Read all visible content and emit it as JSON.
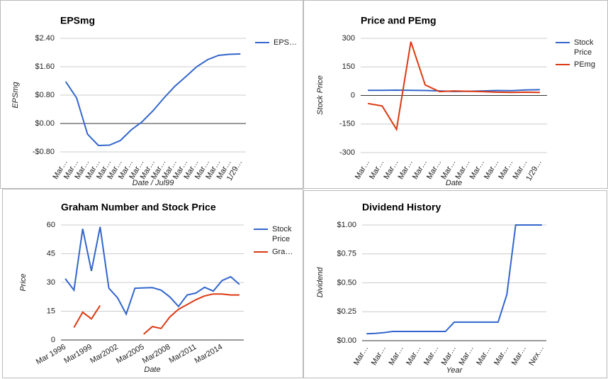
{
  "chart_data": [
    {
      "type": "line",
      "title": "EPSmg",
      "ylabel": "EPSmg",
      "xlabel": "Date / Jul99",
      "categories": [
        "Mar…",
        "Mar…",
        "Mar…",
        "Mar…",
        "Mar…",
        "Mar…",
        "Mar…",
        "Mar…",
        "Mar…",
        "Mar…",
        "Mar…",
        "Mar…",
        "Mar…",
        "Mar…",
        "Mar…",
        "Mar…",
        "1/29…"
      ],
      "series": [
        {
          "name": "EPS…",
          "color": "#3366cc",
          "values": [
            1.18,
            0.72,
            -0.3,
            -0.62,
            -0.61,
            -0.48,
            -0.18,
            0.05,
            0.36,
            0.72,
            1.05,
            1.32,
            1.6,
            1.8,
            1.92,
            1.95,
            1.96
          ]
        }
      ],
      "ylim": [
        -0.8,
        2.4
      ],
      "yticks": [
        {
          "value": -0.8,
          "label": "-$0.80"
        },
        {
          "value": 0,
          "label": "$0.00"
        },
        {
          "value": 0.8,
          "label": "$0.80"
        },
        {
          "value": 1.6,
          "label": "$1.60"
        },
        {
          "value": 2.4,
          "label": "$2.40"
        }
      ],
      "grid": true
    },
    {
      "type": "line",
      "title": "Price and PEmg",
      "ylabel": "Stock Price",
      "xlabel": "Date",
      "categories": [
        "Mar…",
        "Mar…",
        "Mar…",
        "Mar…",
        "Mar…",
        "Mar…",
        "Mar…",
        "Mar…",
        "Mar…",
        "Mar…",
        "Mar…",
        "Mar…",
        "1/29…"
      ],
      "series": [
        {
          "name": "Stock Price",
          "color": "#3366cc",
          "values": [
            27,
            27,
            28,
            27,
            26,
            24,
            21,
            22,
            24,
            26,
            25,
            29,
            30
          ]
        },
        {
          "name": "PEmg",
          "color": "#dc3912",
          "values": [
            -42,
            -55,
            -178,
            282,
            55,
            20,
            24,
            22,
            20,
            17,
            16,
            17,
            16
          ]
        }
      ],
      "ylim": [
        -300,
        300
      ],
      "yticks": [
        -300,
        -150,
        0,
        150,
        300
      ],
      "grid": true
    },
    {
      "type": "line",
      "title": "Graham Number and Stock Price",
      "ylabel": "Price",
      "xlabel": "Date",
      "categories": [
        "Mar 1996",
        null,
        null,
        "Mar1999",
        null,
        null,
        "Mar2002",
        null,
        null,
        "Mar2005",
        null,
        null,
        "Mar2008",
        null,
        null,
        "Mar2011",
        null,
        null,
        "Mar2014",
        null,
        null
      ],
      "series": [
        {
          "name": "Stock Price",
          "color": "#3366cc",
          "values": [
            32,
            26,
            58,
            36,
            59,
            27,
            22,
            13.5,
            27,
            27.2,
            27.3,
            26,
            22.5,
            17.5,
            23.5,
            24.5,
            27.5,
            25.5,
            31,
            33,
            29
          ]
        },
        {
          "name": "Gra…",
          "color": "#dc3912",
          "values": [
            null,
            6.5,
            14.5,
            11,
            18,
            null,
            null,
            null,
            null,
            3,
            7,
            6,
            12,
            16,
            18.5,
            21,
            23,
            24,
            24,
            23.5,
            23.5
          ]
        }
      ],
      "ylim": [
        0,
        60
      ],
      "yticks": [
        0,
        15,
        30,
        45,
        60
      ],
      "grid": true
    },
    {
      "type": "line",
      "title": "Dividend History",
      "ylabel": "Dividend",
      "xlabel": "Year",
      "categories": [
        "Mar…",
        null,
        "Mar…",
        null,
        "Mar…",
        null,
        "Mar…",
        null,
        "Mar…",
        null,
        "Mar…",
        null,
        "Mar…",
        null,
        "Mar…",
        null,
        "Mar…",
        null,
        "Mar…",
        null,
        "Nex…"
      ],
      "values": [
        0.06,
        0.063,
        0.07,
        0.08,
        0.08,
        0.08,
        0.08,
        0.08,
        0.08,
        0.08,
        0.16,
        0.16,
        0.16,
        0.16,
        0.16,
        0.16,
        0.4,
        1.0,
        1.0,
        1.0,
        1.0
      ],
      "color": "#3366cc",
      "ylim": [
        0,
        1
      ],
      "yticks": [
        {
          "value": 0,
          "label": "$0.00"
        },
        {
          "value": 0.25,
          "label": "$0.25"
        },
        {
          "value": 0.5,
          "label": "$0.50"
        },
        {
          "value": 0.75,
          "label": "$0.75"
        },
        {
          "value": 1,
          "label": "$1.00"
        }
      ],
      "grid": true
    }
  ]
}
